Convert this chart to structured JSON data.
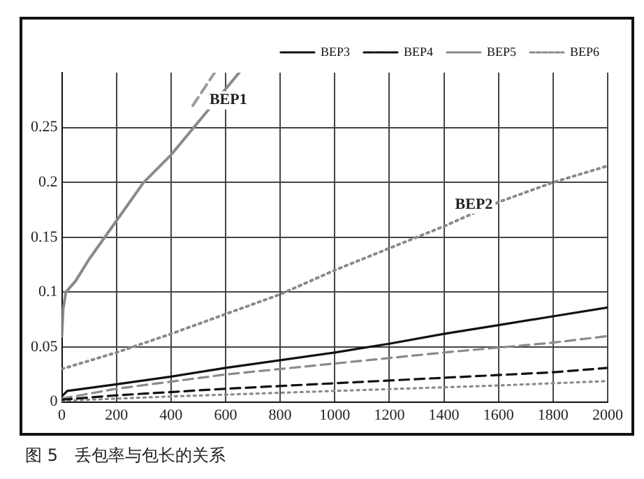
{
  "chart_data": {
    "type": "line",
    "xlim": [
      0,
      2000
    ],
    "xticks": [
      0,
      200,
      400,
      600,
      800,
      1000,
      1200,
      1400,
      1600,
      1800,
      2000
    ],
    "ylim": [
      0,
      0.3
    ],
    "yticks": [
      0,
      0.05,
      0.1,
      0.15,
      0.2,
      0.25
    ],
    "grid": true,
    "legend": "top right",
    "marker": "none",
    "series": [
      {
        "color": "#8a8a8a",
        "line_style": "solid",
        "x": [
          0,
          5,
          15,
          50,
          100,
          200,
          300,
          400,
          500,
          600,
          650
        ],
        "values": [
          0.06,
          0.085,
          0.1,
          0.11,
          0.13,
          0.165,
          0.2,
          0.225,
          0.255,
          0.285,
          0.3
        ]
      },
      {
        "color": "#9a9a9a",
        "line_style": "dashed",
        "x": [
          480,
          520,
          560
        ],
        "values": [
          0.27,
          0.285,
          0.3
        ]
      },
      {
        "color": "#8a8a8a",
        "line_style": "dotted",
        "x": [
          0,
          200,
          400,
          600,
          800,
          1000,
          1200,
          1400,
          1600,
          1800,
          2000
        ],
        "values": [
          0.03,
          0.045,
          0.062,
          0.08,
          0.098,
          0.12,
          0.14,
          0.16,
          0.182,
          0.2,
          0.215
        ]
      },
      {
        "name": "BEP3",
        "color": "#111111",
        "line_style": "solid",
        "x": [
          0,
          20,
          200,
          400,
          600,
          800,
          1000,
          1200,
          1400,
          1600,
          1800,
          2000
        ],
        "values": [
          0.005,
          0.01,
          0.016,
          0.023,
          0.031,
          0.038,
          0.045,
          0.053,
          0.062,
          0.07,
          0.078,
          0.086
        ]
      },
      {
        "name": "BEP4",
        "color": "#111111",
        "line_style": "dashed",
        "x": [
          0,
          200,
          600,
          1000,
          1400,
          1800,
          2000
        ],
        "values": [
          0.002,
          0.006,
          0.012,
          0.017,
          0.022,
          0.027,
          0.031
        ]
      },
      {
        "name": "BEP5",
        "color": "#8a8a8a",
        "line_style": "dashed",
        "x": [
          0,
          200,
          600,
          1000,
          1400,
          1800,
          2000
        ],
        "values": [
          0.003,
          0.012,
          0.025,
          0.035,
          0.045,
          0.054,
          0.06
        ]
      },
      {
        "name": "BEP6",
        "color": "#8a8a8a",
        "line_style": "dotted",
        "x": [
          0,
          400,
          1000,
          1600,
          2000
        ],
        "values": [
          0.001,
          0.005,
          0.01,
          0.015,
          0.019
        ]
      }
    ],
    "annotations": [
      {
        "text": "BEP1",
        "x": 500,
        "y": 0.255
      },
      {
        "text": "BEP2",
        "x": 1400,
        "y": 0.16
      },
      "图 5　丢包率与包长的关系"
    ]
  }
}
